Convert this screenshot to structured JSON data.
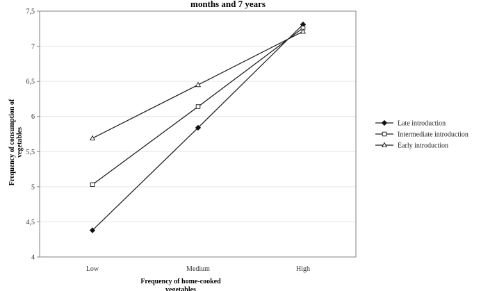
{
  "chart_data": {
    "type": "line",
    "title": "months and 7 years",
    "xlabel_line1": "Frequency of home-cooked",
    "xlabel_line2": "vegetables",
    "ylabel_line1": "Frequency of  consumption of",
    "ylabel_line2": "vegetables",
    "categories": [
      "Low",
      "Medium",
      "High"
    ],
    "ylim": [
      4,
      7.5
    ],
    "yticks": [
      "4",
      "4,5",
      "5",
      "5,5",
      "6",
      "6,5",
      "7",
      "7,5"
    ],
    "grid": true,
    "legend_position": "right",
    "series": [
      {
        "name": "Late introduction",
        "values": [
          4.38,
          5.84,
          7.31
        ],
        "marker": "diamond-filled"
      },
      {
        "name": "Intermediate introduction",
        "values": [
          5.03,
          6.14,
          7.26
        ],
        "marker": "square-open"
      },
      {
        "name": "Early introduction",
        "values": [
          5.69,
          6.45,
          7.21
        ],
        "marker": "triangle-open"
      }
    ]
  }
}
